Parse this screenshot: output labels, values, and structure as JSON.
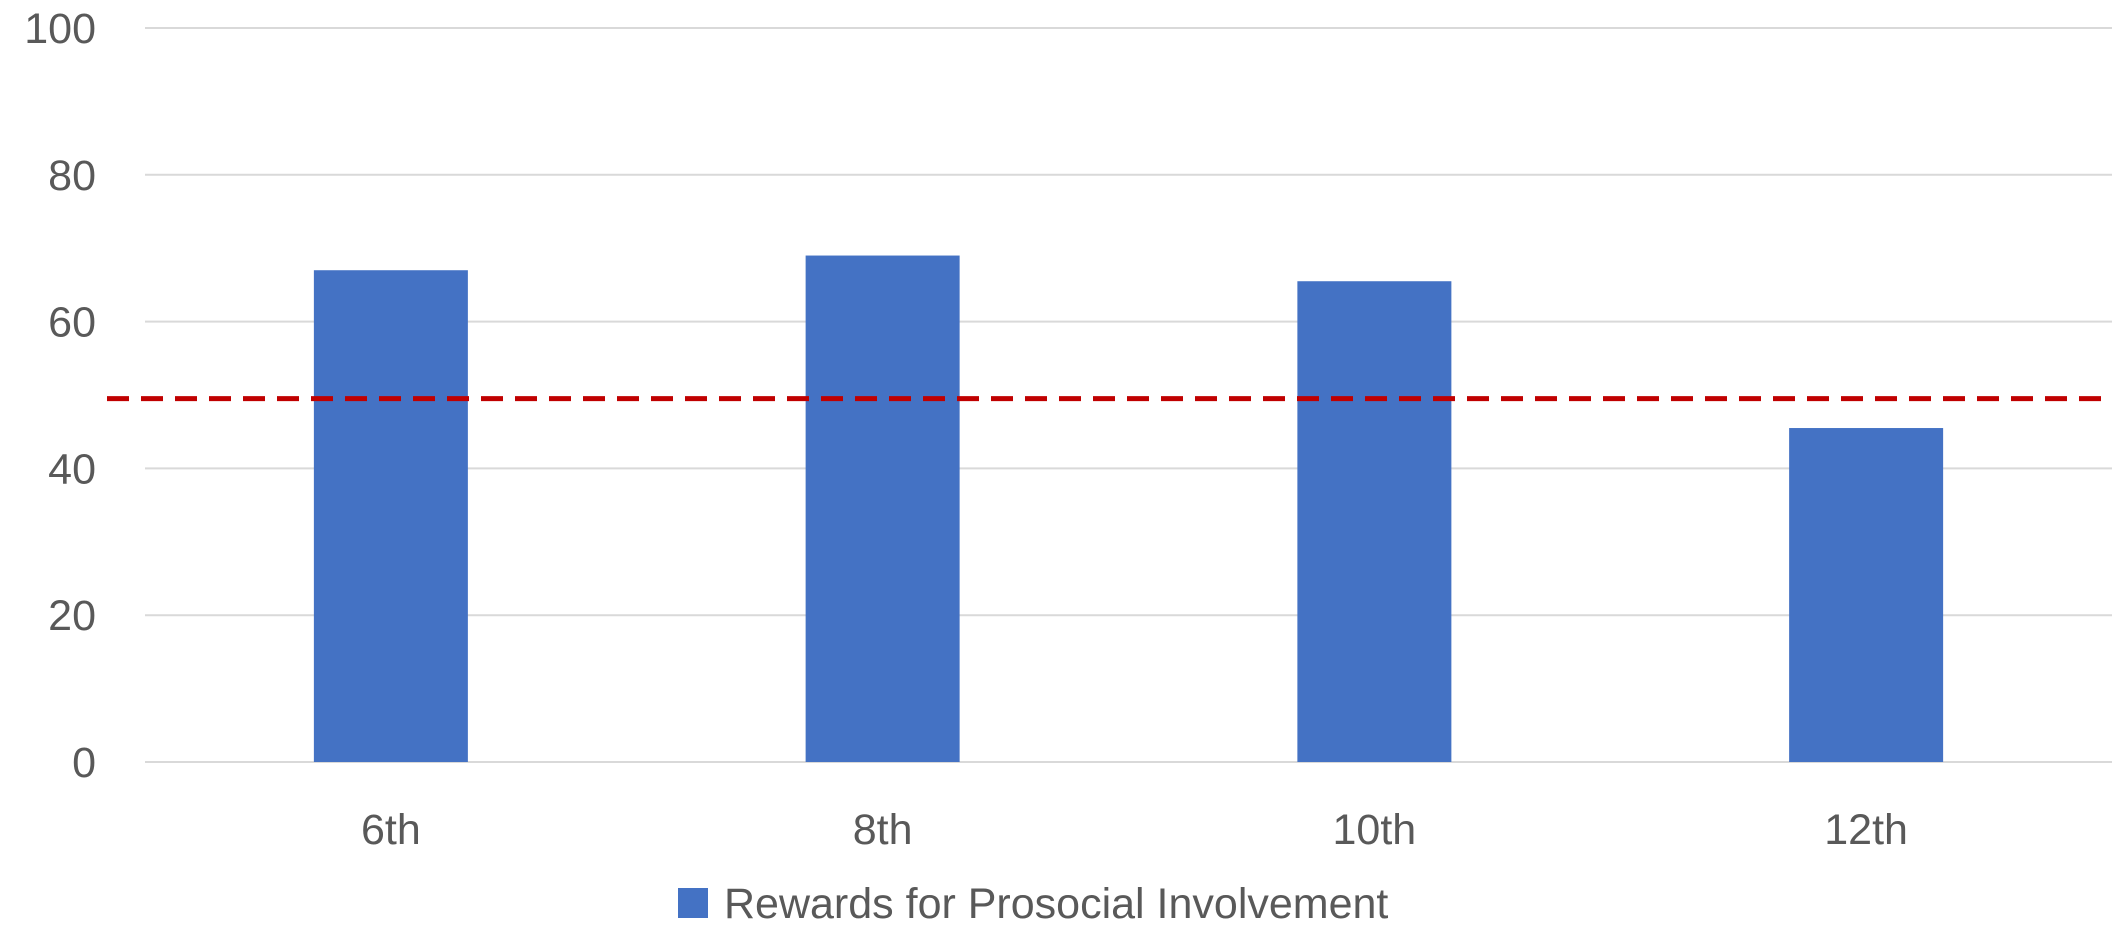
{
  "chart_data": {
    "type": "bar",
    "categories": [
      "6th",
      "8th",
      "10th",
      "12th"
    ],
    "series": [
      {
        "name": "Rewards for Prosocial Involvement",
        "values": [
          67,
          69,
          65.5,
          45.5
        ],
        "color": "#4472C4"
      }
    ],
    "yticks": [
      "0",
      "20",
      "40",
      "60",
      "80",
      "100"
    ],
    "ylim": [
      0,
      100
    ],
    "reference_line": {
      "value": 49.5,
      "color": "#C00000",
      "style": "dashed"
    },
    "grid": true,
    "gridline_color": "#D9D9D9",
    "legend": {
      "position": "bottom"
    },
    "title": "",
    "xlabel": "",
    "ylabel": ""
  }
}
